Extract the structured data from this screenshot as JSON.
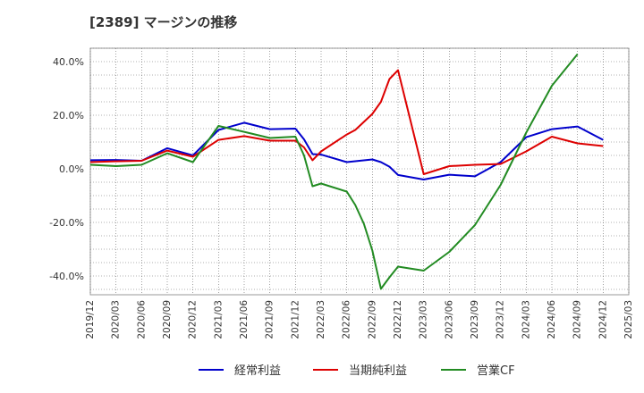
{
  "title": "[2389]  マージンの推移",
  "chart_data": {
    "type": "line",
    "x": [
      "2019/12",
      "2020/03",
      "2020/06",
      "2020/09",
      "2020/12",
      "2021/01",
      "2021/03",
      "2021/06",
      "2021/09",
      "2021/12",
      "2022/01",
      "2022/02",
      "2022/03",
      "2022/06",
      "2022/07",
      "2022/08",
      "2022/09",
      "2022/10",
      "2022/11",
      "2022/12",
      "2023/03",
      "2023/06",
      "2023/09",
      "2023/12",
      "2024/03",
      "2024/06",
      "2024/09",
      "2024/12"
    ],
    "x_ticks": [
      "2019/12",
      "2020/03",
      "2020/06",
      "2020/09",
      "2020/12",
      "2021/03",
      "2021/06",
      "2021/09",
      "2021/12",
      "2022/03",
      "2022/06",
      "2022/09",
      "2022/12",
      "2023/03",
      "2023/06",
      "2023/09",
      "2023/12",
      "2024/03",
      "2024/06",
      "2024/09",
      "2024/12",
      "2025/03"
    ],
    "y_ticks": [
      "40.0%",
      "20.0%",
      "0.0%",
      "-20.0%",
      "-40.0%"
    ],
    "y_tick_values": [
      40,
      20,
      0,
      -20,
      -40
    ],
    "ylim": [
      -47,
      45
    ],
    "x_range": [
      "2019/12",
      "2025/03"
    ],
    "grid": true,
    "legend_position": "bottom",
    "series": [
      {
        "name": "経常利益",
        "color": "#0000cc",
        "points": [
          [
            "2019/12",
            3.2
          ],
          [
            "2020/03",
            3.3
          ],
          [
            "2020/06",
            3.0
          ],
          [
            "2020/09",
            7.7
          ],
          [
            "2020/12",
            5.0
          ],
          [
            "2021/03",
            14.5
          ],
          [
            "2021/06",
            17.2
          ],
          [
            "2021/09",
            14.8
          ],
          [
            "2021/12",
            15.0
          ],
          [
            "2022/01",
            11.0
          ],
          [
            "2022/02",
            5.5
          ],
          [
            "2022/03",
            5.3
          ],
          [
            "2022/06",
            2.5
          ],
          [
            "2022/09",
            3.5
          ],
          [
            "2022/10",
            2.5
          ],
          [
            "2022/11",
            0.8
          ],
          [
            "2022/12",
            -2.3
          ],
          [
            "2023/03",
            -4.0
          ],
          [
            "2023/06",
            -2.2
          ],
          [
            "2023/09",
            -2.8
          ],
          [
            "2023/12",
            2.5
          ],
          [
            "2024/03",
            11.8
          ],
          [
            "2024/06",
            14.8
          ],
          [
            "2024/09",
            15.8
          ],
          [
            "2024/12",
            10.8
          ]
        ]
      },
      {
        "name": "当期純利益",
        "color": "#dd0000",
        "points": [
          [
            "2019/12",
            2.5
          ],
          [
            "2020/03",
            2.8
          ],
          [
            "2020/06",
            3.0
          ],
          [
            "2020/09",
            6.8
          ],
          [
            "2020/12",
            4.5
          ],
          [
            "2021/03",
            10.8
          ],
          [
            "2021/06",
            12.2
          ],
          [
            "2021/09",
            10.5
          ],
          [
            "2021/12",
            10.5
          ],
          [
            "2022/01",
            8.0
          ],
          [
            "2022/02",
            3.2
          ],
          [
            "2022/03",
            6.5
          ],
          [
            "2022/06",
            12.8
          ],
          [
            "2022/07",
            14.5
          ],
          [
            "2022/08",
            17.5
          ],
          [
            "2022/09",
            20.5
          ],
          [
            "2022/10",
            25.0
          ],
          [
            "2022/11",
            33.5
          ],
          [
            "2022/12",
            36.8
          ],
          [
            "2023/03",
            -2.0
          ],
          [
            "2023/06",
            1.0
          ],
          [
            "2023/09",
            1.5
          ],
          [
            "2023/12",
            1.8
          ],
          [
            "2024/03",
            6.5
          ],
          [
            "2024/06",
            12.0
          ],
          [
            "2024/09",
            9.5
          ],
          [
            "2024/12",
            8.5
          ]
        ]
      },
      {
        "name": "営業CF",
        "color": "#228b22",
        "points": [
          [
            "2019/12",
            1.5
          ],
          [
            "2020/03",
            1.0
          ],
          [
            "2020/06",
            1.5
          ],
          [
            "2020/09",
            5.8
          ],
          [
            "2020/12",
            2.5
          ],
          [
            "2021/03",
            16.0
          ],
          [
            "2021/06",
            13.8
          ],
          [
            "2021/09",
            11.5
          ],
          [
            "2021/12",
            12.0
          ],
          [
            "2022/01",
            5.0
          ],
          [
            "2022/02",
            -6.5
          ],
          [
            "2022/03",
            -5.5
          ],
          [
            "2022/06",
            -8.5
          ],
          [
            "2022/07",
            -13.5
          ],
          [
            "2022/08",
            -20.5
          ],
          [
            "2022/09",
            -30.5
          ],
          [
            "2022/10",
            -44.8
          ],
          [
            "2022/11",
            -40.5
          ],
          [
            "2022/12",
            -36.5
          ],
          [
            "2023/03",
            -38.0
          ],
          [
            "2023/06",
            -31.0
          ],
          [
            "2023/09",
            -21.0
          ],
          [
            "2023/12",
            -6.0
          ],
          [
            "2024/03",
            13.5
          ],
          [
            "2024/06",
            31.0
          ],
          [
            "2024/09",
            42.8
          ]
        ]
      }
    ]
  }
}
